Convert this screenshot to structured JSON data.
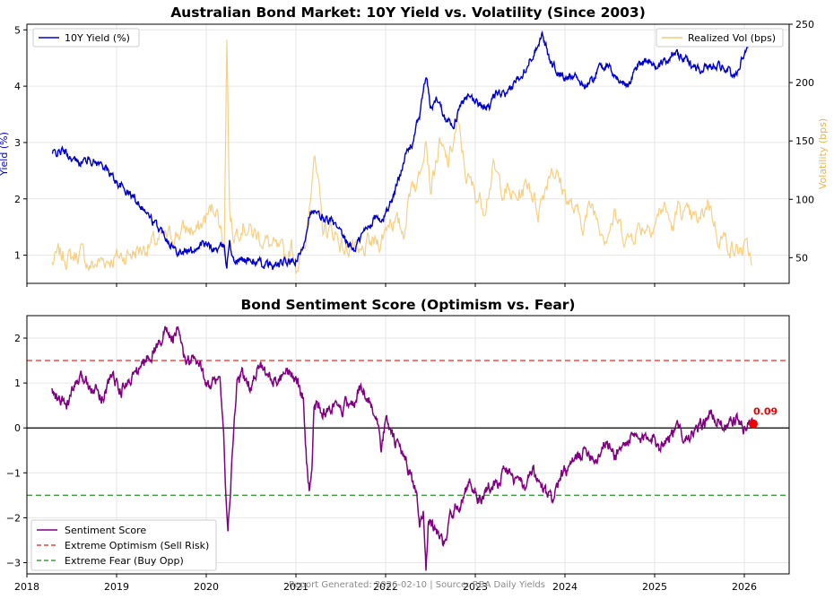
{
  "chart_data": [
    {
      "type": "line",
      "title": "Australian Bond Market: 10Y Yield vs. Volatility (Since 2003)",
      "ylabel_left": "Yield (%)",
      "ylabel_right": "Volatility (bps)",
      "ylim_left": [
        0.5,
        5.1
      ],
      "ylim_right": [
        28,
        250
      ],
      "yticks_left": [
        1,
        2,
        3,
        4,
        5
      ],
      "yticks_right": [
        50,
        100,
        150,
        200,
        250
      ],
      "xlim": [
        2018.0,
        2026.5
      ],
      "xticks": [
        2018,
        2019,
        2020,
        2021,
        2022,
        2023,
        2024,
        2025,
        2026
      ],
      "grid": true,
      "legend_left_position": "top-left",
      "legend_right_position": "top-right",
      "colors": {
        "yield": "#0000cc",
        "vol": "#f5c870"
      },
      "series": [
        {
          "name": "10Y Yield (%)",
          "axis": "left",
          "x": [
            2018.28,
            2018.4,
            2018.55,
            2018.7,
            2018.85,
            2019.0,
            2019.1,
            2019.25,
            2019.4,
            2019.55,
            2019.65,
            2019.8,
            2019.95,
            2020.1,
            2020.2,
            2020.23,
            2020.26,
            2020.3,
            2020.45,
            2020.6,
            2020.75,
            2020.9,
            2020.98,
            2021.05,
            2021.1,
            2021.15,
            2021.25,
            2021.4,
            2021.55,
            2021.65,
            2021.75,
            2021.9,
            2021.95,
            2022.0,
            2022.1,
            2022.2,
            2022.3,
            2022.38,
            2022.45,
            2022.5,
            2022.58,
            2022.65,
            2022.75,
            2022.85,
            2022.95,
            2023.05,
            2023.15,
            2023.25,
            2023.35,
            2023.45,
            2023.55,
            2023.65,
            2023.75,
            2023.82,
            2023.9,
            2024.0,
            2024.1,
            2024.2,
            2024.3,
            2024.4,
            2024.5,
            2024.6,
            2024.7,
            2024.8,
            2024.9,
            2025.0,
            2025.1,
            2025.2,
            2025.3,
            2025.4,
            2025.5,
            2025.6,
            2025.7,
            2025.8,
            2025.9,
            2025.95,
            2026.0,
            2026.05,
            2026.08
          ],
          "values": [
            2.8,
            2.85,
            2.65,
            2.7,
            2.6,
            2.3,
            2.15,
            1.95,
            1.6,
            1.35,
            1.1,
            1.05,
            1.2,
            1.1,
            1.15,
            0.8,
            1.3,
            0.9,
            0.92,
            0.85,
            0.8,
            0.88,
            0.85,
            1.0,
            1.3,
            1.75,
            1.7,
            1.6,
            1.25,
            1.1,
            1.4,
            1.7,
            1.55,
            1.75,
            2.1,
            2.7,
            3.0,
            3.5,
            4.2,
            3.6,
            3.8,
            3.5,
            3.3,
            3.7,
            3.8,
            3.7,
            3.6,
            3.9,
            3.8,
            4.1,
            4.3,
            4.6,
            4.95,
            4.5,
            4.3,
            4.1,
            4.25,
            4.0,
            4.1,
            4.4,
            4.3,
            4.1,
            4.0,
            4.35,
            4.5,
            4.35,
            4.4,
            4.6,
            4.5,
            4.4,
            4.3,
            4.35,
            4.4,
            4.3,
            4.15,
            4.4,
            4.6,
            4.75,
            4.8
          ]
        },
        {
          "name": "Realized Vol (bps)",
          "axis": "right",
          "x": [
            2018.28,
            2018.35,
            2018.5,
            2018.6,
            2018.7,
            2018.85,
            2019.0,
            2019.2,
            2019.4,
            2019.6,
            2019.8,
            2019.9,
            2020.0,
            2020.1,
            2020.15,
            2020.2,
            2020.23,
            2020.26,
            2020.3,
            2020.4,
            2020.5,
            2020.6,
            2020.8,
            2020.9,
            2020.95,
            2021.0,
            2021.1,
            2021.15,
            2021.2,
            2021.3,
            2021.45,
            2021.55,
            2021.62,
            2021.7,
            2021.8,
            2021.95,
            2022.05,
            2022.2,
            2022.3,
            2022.35,
            2022.45,
            2022.5,
            2022.6,
            2022.7,
            2022.8,
            2022.9,
            2023.0,
            2023.1,
            2023.2,
            2023.3,
            2023.45,
            2023.6,
            2023.7,
            2023.85,
            2024.0,
            2024.1,
            2024.2,
            2024.3,
            2024.45,
            2024.55,
            2024.7,
            2024.8,
            2025.0,
            2025.1,
            2025.2,
            2025.28,
            2025.35,
            2025.5,
            2025.6,
            2025.7,
            2025.8,
            2025.9,
            2026.0,
            2026.08
          ],
          "values": [
            45,
            52,
            50,
            55,
            42,
            48,
            50,
            55,
            62,
            68,
            75,
            72,
            85,
            95,
            80,
            60,
            240,
            90,
            70,
            80,
            72,
            68,
            55,
            50,
            60,
            45,
            55,
            100,
            140,
            75,
            70,
            55,
            62,
            48,
            60,
            65,
            85,
            72,
            120,
            110,
            160,
            110,
            145,
            130,
            165,
            120,
            105,
            95,
            125,
            110,
            100,
            115,
            90,
            130,
            105,
            90,
            80,
            95,
            70,
            85,
            65,
            75,
            80,
            95,
            75,
            95,
            85,
            80,
            100,
            70,
            65,
            55,
            58,
            50
          ]
        }
      ]
    },
    {
      "type": "line",
      "title": "Bond Sentiment Score (Optimism vs. Fear)",
      "ylim": [
        -3.25,
        2.5
      ],
      "yticks": [
        -3,
        -2,
        -1,
        0,
        1,
        2
      ],
      "xlim": [
        2018.0,
        2026.5
      ],
      "xticks": [
        2018,
        2019,
        2020,
        2021,
        2022,
        2023,
        2024,
        2025,
        2026
      ],
      "grid": true,
      "legend_position": "bottom-left",
      "colors": {
        "sentiment": "#800080",
        "optimism": "#e8413a",
        "fear": "#3a9e3a",
        "zero": "#000000",
        "marker": "#ee0000"
      },
      "reference_lines": [
        {
          "name": "Extreme Optimism (Sell Risk)",
          "y": 1.5,
          "style": "dashed"
        },
        {
          "name": "Extreme Fear (Buy Opp)",
          "y": -1.5,
          "style": "dashed"
        },
        {
          "name": "zero",
          "y": 0,
          "style": "solid"
        }
      ],
      "annotation": {
        "x": 2026.1,
        "y": 0.09,
        "text": "0.09"
      },
      "series": [
        {
          "name": "Sentiment Score",
          "x": [
            2018.28,
            2018.35,
            2018.45,
            2018.55,
            2018.65,
            2018.75,
            2018.85,
            2018.95,
            2019.05,
            2019.15,
            2019.25,
            2019.35,
            2019.45,
            2019.55,
            2019.62,
            2019.7,
            2019.75,
            2019.85,
            2019.95,
            2020.05,
            2020.15,
            2020.2,
            2020.24,
            2020.28,
            2020.34,
            2020.4,
            2020.5,
            2020.6,
            2020.7,
            2020.8,
            2020.9,
            2021.0,
            2021.08,
            2021.12,
            2021.15,
            2021.18,
            2021.2,
            2021.3,
            2021.4,
            2021.5,
            2021.6,
            2021.65,
            2021.72,
            2021.8,
            2021.9,
            2021.95,
            2022.0,
            2022.1,
            2022.2,
            2022.3,
            2022.35,
            2022.38,
            2022.42,
            2022.45,
            2022.48,
            2022.55,
            2022.65,
            2022.75,
            2022.85,
            2022.95,
            2023.05,
            2023.15,
            2023.25,
            2023.35,
            2023.45,
            2023.55,
            2023.65,
            2023.75,
            2023.85,
            2023.95,
            2024.05,
            2024.15,
            2024.25,
            2024.35,
            2024.45,
            2024.55,
            2024.65,
            2024.75,
            2024.85,
            2024.95,
            2025.05,
            2025.15,
            2025.25,
            2025.35,
            2025.45,
            2025.55,
            2025.6,
            2025.7,
            2025.8,
            2025.9,
            2026.0,
            2026.05,
            2026.1
          ],
          "values": [
            0.8,
            0.6,
            0.5,
            1.0,
            1.1,
            0.9,
            0.7,
            1.2,
            0.8,
            1.1,
            1.3,
            1.6,
            1.8,
            2.2,
            2.0,
            2.15,
            1.5,
            1.5,
            1.3,
            0.9,
            1.2,
            -0.5,
            -2.45,
            -1.0,
            1.0,
            1.2,
            0.9,
            1.4,
            1.1,
            1.0,
            1.2,
            1.1,
            0.7,
            -0.8,
            -1.4,
            -0.9,
            0.6,
            0.3,
            0.5,
            0.3,
            0.7,
            0.5,
            0.9,
            0.7,
            0.2,
            -0.5,
            0.2,
            -0.3,
            -0.6,
            -1.2,
            -1.5,
            -2.3,
            -1.8,
            -3.05,
            -2.0,
            -2.3,
            -2.6,
            -1.8,
            -1.6,
            -1.2,
            -1.6,
            -1.3,
            -1.2,
            -0.9,
            -1.2,
            -1.3,
            -1.0,
            -1.4,
            -1.6,
            -1.1,
            -0.9,
            -0.6,
            -0.5,
            -0.7,
            -0.3,
            -0.6,
            -0.4,
            -0.2,
            -0.3,
            -0.1,
            -0.4,
            -0.2,
            0.0,
            -0.2,
            -0.1,
            0.1,
            0.3,
            0.2,
            0.0,
            0.2,
            0.0,
            0.1,
            0.09
          ]
        }
      ]
    }
  ],
  "footer": "Report Generated: 2026-02-10 | Source: RBA Daily Yields"
}
